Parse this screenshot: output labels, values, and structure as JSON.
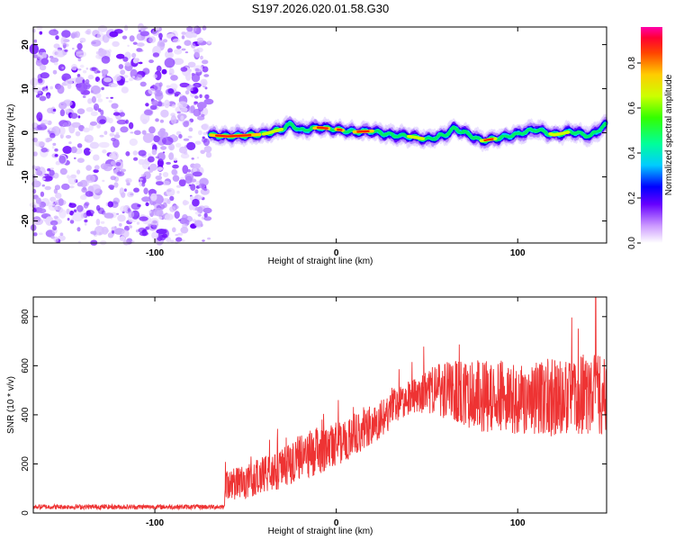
{
  "title": "S197.2026.020.01.58.G30",
  "chart_data": [
    {
      "type": "heatmap",
      "name": "spectrogram",
      "xlabel": "Height of straight line (km)",
      "ylabel": "Frequency (Hz)",
      "xlim": [
        -167,
        149
      ],
      "ylim": [
        -25,
        24
      ],
      "xticks": [
        -100,
        0,
        100
      ],
      "yticks": [
        -20,
        -10,
        0,
        10,
        20
      ],
      "noise_region_x": [
        -167,
        -70
      ],
      "ridge": {
        "x": [
          -70,
          -60,
          -50,
          -40,
          -30,
          -25,
          -20,
          -10,
          0,
          10,
          20,
          30,
          40,
          50,
          60,
          65,
          70,
          80,
          90,
          100,
          110,
          120,
          130,
          140,
          149
        ],
        "y": [
          -0.5,
          -0.8,
          -0.6,
          -0.3,
          0.8,
          2.0,
          0.5,
          1.2,
          0.8,
          0.2,
          0.4,
          -0.5,
          -0.8,
          -1.5,
          -0.5,
          1.0,
          0.2,
          -1.8,
          -1.2,
          -0.3,
          0.8,
          -0.5,
          0.3,
          -0.8,
          2.0
        ]
      },
      "colorbar": {
        "label": "Normalized spectral amplitude",
        "ticks": [
          0.0,
          0.2,
          0.4,
          0.6,
          0.8
        ],
        "tick_labels": [
          "0.0",
          "0.2",
          "0.4",
          "0.6",
          "0.8"
        ],
        "range": [
          0,
          0.96
        ]
      }
    },
    {
      "type": "line",
      "name": "snr",
      "xlabel": "Height of straight line (km)",
      "ylabel": "SNR (10 * v/v)",
      "xlim": [
        -167,
        149
      ],
      "ylim": [
        0,
        880
      ],
      "xticks": [
        -100,
        0,
        100
      ],
      "yticks": [
        0,
        200,
        400,
        600,
        800
      ],
      "series": [
        {
          "name": "SNR",
          "color": "#ee3333",
          "envelope_x": [
            -167,
            -100,
            -62,
            -61,
            -50,
            -30,
            -20,
            -10,
            0,
            20,
            30,
            40,
            50,
            60,
            80,
            100,
            120,
            140,
            149
          ],
          "envelope_mean": [
            25,
            25,
            25,
            110,
            130,
            180,
            230,
            250,
            280,
            360,
            420,
            470,
            500,
            500,
            480,
            470,
            470,
            480,
            480
          ],
          "envelope_amp": [
            10,
            10,
            10,
            60,
            70,
            80,
            90,
            100,
            90,
            80,
            80,
            70,
            90,
            120,
            150,
            150,
            160,
            170,
            160
          ],
          "max_peak": {
            "x": 143,
            "y": 880
          }
        }
      ]
    }
  ]
}
